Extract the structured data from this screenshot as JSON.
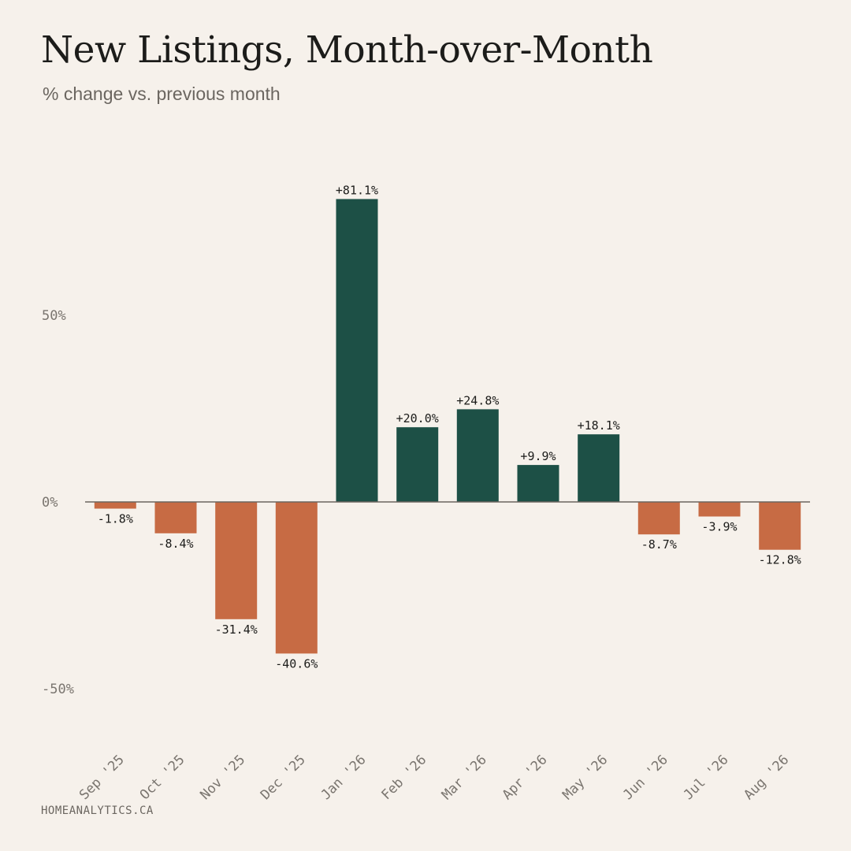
{
  "header": {
    "title": "New Listings, Month-over-Month",
    "subtitle": "% change vs. previous month"
  },
  "footer": {
    "source": "HOMEANALYTICS.CA"
  },
  "colors": {
    "positive": "#1d5046",
    "negative": "#c76b44",
    "axis": "#6b6660",
    "text": "#1c1c1a",
    "tick": "#7a756f",
    "background": "#f6f1eb"
  },
  "chart_data": {
    "type": "bar",
    "title": "New Listings, Month-over-Month",
    "subtitle": "% change vs. previous month",
    "xlabel": "",
    "ylabel": "",
    "ylim": [
      -63,
      100
    ],
    "yticks": [
      50,
      0,
      -50
    ],
    "ytick_labels": [
      "50%",
      "0%",
      "-50%"
    ],
    "grid": false,
    "legend": "none",
    "categories": [
      "Sep '25",
      "Oct '25",
      "Nov '25",
      "Dec '25",
      "Jan '26",
      "Feb '26",
      "Mar '26",
      "Apr '26",
      "May '26",
      "Jun '26",
      "Jul '26",
      "Aug '26"
    ],
    "values": [
      -1.8,
      -8.4,
      -31.4,
      -40.6,
      81.1,
      20.0,
      24.8,
      9.9,
      18.1,
      -8.7,
      -3.9,
      -12.8
    ],
    "data_labels": [
      "-1.8%",
      "-8.4%",
      "-31.4%",
      "-40.6%",
      "+81.1%",
      "+20.0%",
      "+24.8%",
      "+9.9%",
      "+18.1%",
      "-8.7%",
      "-3.9%",
      "-12.8%"
    ]
  }
}
